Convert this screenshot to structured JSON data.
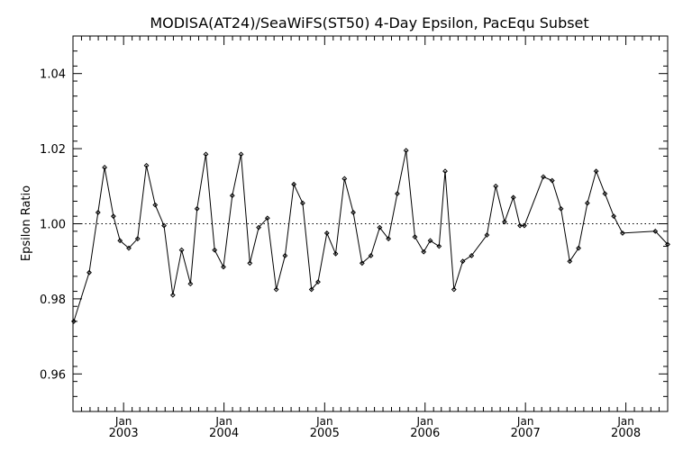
{
  "chart_data": {
    "type": "line",
    "title": "MODISA(AT24)/SeaWiFS(ST50) 4-Day Epsilon, PacEqu Subset",
    "xlabel": "",
    "ylabel": "Epsilon Ratio",
    "xlim": [
      "2002-07-01",
      "2008-06-01"
    ],
    "ylim": [
      0.95,
      1.05
    ],
    "y_ticks": [
      0.96,
      0.98,
      1.0,
      1.02,
      1.04
    ],
    "y_tick_labels": [
      "0.96",
      "0.98",
      "1.00",
      "1.02",
      "1.04"
    ],
    "x_ticks": [
      {
        "date": "2003-01-01",
        "month": "Jan",
        "year": "2003"
      },
      {
        "date": "2004-01-01",
        "month": "Jan",
        "year": "2004"
      },
      {
        "date": "2005-01-01",
        "month": "Jan",
        "year": "2005"
      },
      {
        "date": "2006-01-01",
        "month": "Jan",
        "year": "2006"
      },
      {
        "date": "2007-01-01",
        "month": "Jan",
        "year": "2007"
      },
      {
        "date": "2008-01-01",
        "month": "Jan",
        "year": "2008"
      }
    ],
    "reference_line": 1.0,
    "series": [
      {
        "x": [
          "2002-07-04",
          "2002-08-29",
          "2002-09-30",
          "2002-10-24",
          "2002-11-25",
          "2002-12-19",
          "2003-01-20",
          "2003-02-21",
          "2003-03-25",
          "2003-04-26",
          "2003-05-28",
          "2003-06-29",
          "2003-07-31",
          "2003-09-01",
          "2003-09-25",
          "2003-10-27",
          "2003-11-28",
          "2003-12-30",
          "2004-01-31",
          "2004-03-03",
          "2004-04-04",
          "2004-05-06",
          "2004-06-07",
          "2004-07-09",
          "2004-08-10",
          "2004-09-11",
          "2004-10-13",
          "2004-11-14",
          "2004-12-08",
          "2005-01-09",
          "2005-02-10",
          "2005-03-14",
          "2005-04-15",
          "2005-05-17",
          "2005-06-18",
          "2005-07-20",
          "2005-08-21",
          "2005-09-22",
          "2005-10-24",
          "2005-11-25",
          "2005-12-27",
          "2006-01-20",
          "2006-02-21",
          "2006-03-15",
          "2006-04-16",
          "2006-05-18",
          "2006-06-19",
          "2006-08-14",
          "2006-09-15",
          "2006-10-17",
          "2006-11-18",
          "2006-12-12",
          "2006-12-28",
          "2007-03-07",
          "2007-04-08",
          "2007-05-10",
          "2007-06-11",
          "2007-07-13",
          "2007-08-14",
          "2007-09-15",
          "2007-10-17",
          "2007-11-18",
          "2007-12-20",
          "2008-04-17",
          "2008-06-01"
        ],
        "y": [
          0.974,
          0.987,
          1.003,
          1.015,
          1.002,
          0.9955,
          0.9935,
          0.996,
          1.0155,
          1.005,
          0.9995,
          0.981,
          0.993,
          0.984,
          1.004,
          1.0185,
          0.993,
          0.9885,
          1.0075,
          1.0185,
          0.9895,
          0.999,
          1.0015,
          0.9825,
          0.9915,
          1.0105,
          1.0055,
          0.9825,
          0.9845,
          0.9975,
          0.992,
          1.012,
          1.003,
          0.9895,
          0.9915,
          0.999,
          0.996,
          1.008,
          1.0195,
          0.9965,
          0.9925,
          0.9955,
          0.994,
          1.014,
          0.9825,
          0.99,
          0.9915,
          0.997,
          1.01,
          1.0005,
          1.007,
          0.9995,
          0.9995,
          1.0125,
          1.0115,
          1.004,
          0.99,
          0.9935,
          1.0055,
          1.014,
          1.008,
          1.002,
          0.9975,
          0.998,
          0.9945
        ]
      }
    ],
    "grid": false,
    "legend": "none",
    "colors": {
      "line": "#000000",
      "marker": "#000000",
      "axis": "#000000",
      "background": "#ffffff"
    }
  }
}
